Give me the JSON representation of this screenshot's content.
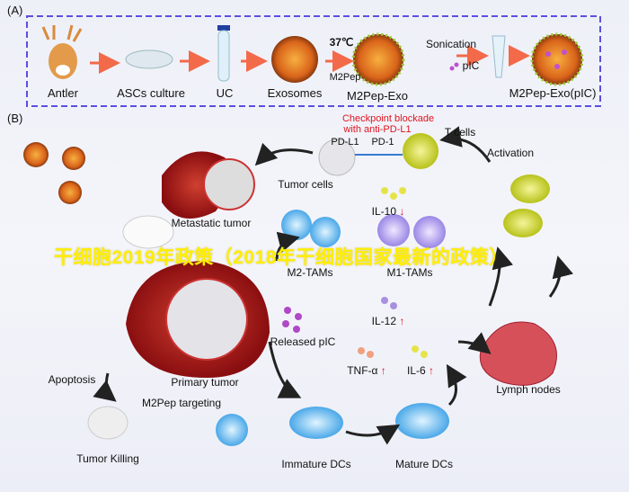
{
  "panel_a": {
    "label": "(A)",
    "steps": [
      "Antler",
      "ASCs culture",
      "UC",
      "Exosomes",
      "M2Pep-Exo",
      "M2Pep-Exo(pIC)"
    ],
    "temp": "37℃",
    "peptide": "M2Pep",
    "sonication": "Sonication",
    "pic": "pIC"
  },
  "panel_b": {
    "label": "(B)",
    "checkpoint_1": "Checkpoint blockade",
    "checkpoint_2": "with anti-PD-L1",
    "t_cells": "T cells",
    "pd_l1": "PD-L1",
    "pd_1": "PD-1",
    "activation": "Activation",
    "tumor_cells": "Tumor cells",
    "metastatic_tumor": "Metastatic tumor",
    "il10": "IL-10",
    "m2_tams": "M2-TAMs",
    "m1_tams": "M1-TAMs",
    "released_pic": "Released pIC",
    "il12": "IL-12",
    "tnf": "TNF-α",
    "il6": "IL-6",
    "lymph_nodes": "Lymph nodes",
    "primary_tumor": "Primary tumor",
    "apoptosis": "Apoptosis",
    "m2pep_targeting": "M2Pep targeting",
    "tumor_killing": "Tumor Killing",
    "immature_dcs": "Immature DCs",
    "mature_dcs": "Mature DCs",
    "down_arrow": "↓",
    "up_arrow": "↑"
  },
  "watermark": "干细胞2019年政策（2018年干细胞国家最新的政策）",
  "colors": {
    "frame": "#5a4fe0",
    "arrow": "#f26a4a",
    "accent_red": "#e0141e",
    "watermark": "#ffee00"
  }
}
